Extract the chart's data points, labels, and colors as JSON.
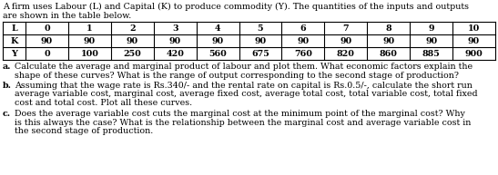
{
  "intro_line1": "A firm uses Labour (L) and Capital (K) to produce commodity (Y). The quantities of the inputs and outputs",
  "intro_line2": "are shown in the table below.",
  "table_rows": [
    [
      "L",
      "0",
      "1",
      "2",
      "3",
      "4",
      "5",
      "6",
      "7",
      "8",
      "9",
      "10"
    ],
    [
      "K",
      "90",
      "90",
      "90",
      "90",
      "90",
      "90",
      "90",
      "90",
      "90",
      "90",
      "90"
    ],
    [
      "Y",
      "0",
      "100",
      "250",
      "420",
      "560",
      "675",
      "760",
      "820",
      "860",
      "885",
      "900"
    ]
  ],
  "q_a_label": "a.",
  "q_a_text": "Calculate the average and marginal product of labour and plot them. What economic factors explain the\n   shape of these curves? What is the range of output corresponding to the second stage of production?",
  "q_b_label": "b.",
  "q_b_text": "Assuming that the wage rate is Rs.340/- and the rental rate on capital is Rs.0.5/-, calculate the short run\n   average variable cost, marginal cost, average fixed cost, average total cost, total variable cost, total fixed\n   cost and total cost. Plot all these curves.",
  "q_c_label": "c.",
  "q_c_text": "Does the average variable cost cuts the marginal cost at the minimum point of the marginal cost? Why\n   is this always the case? What is the relationship between the marginal cost and average variable cost in\n   the second stage of production.",
  "font_size": 6.8,
  "bg_color": "#ffffff",
  "text_color": "#000000",
  "line_color": "#000000"
}
